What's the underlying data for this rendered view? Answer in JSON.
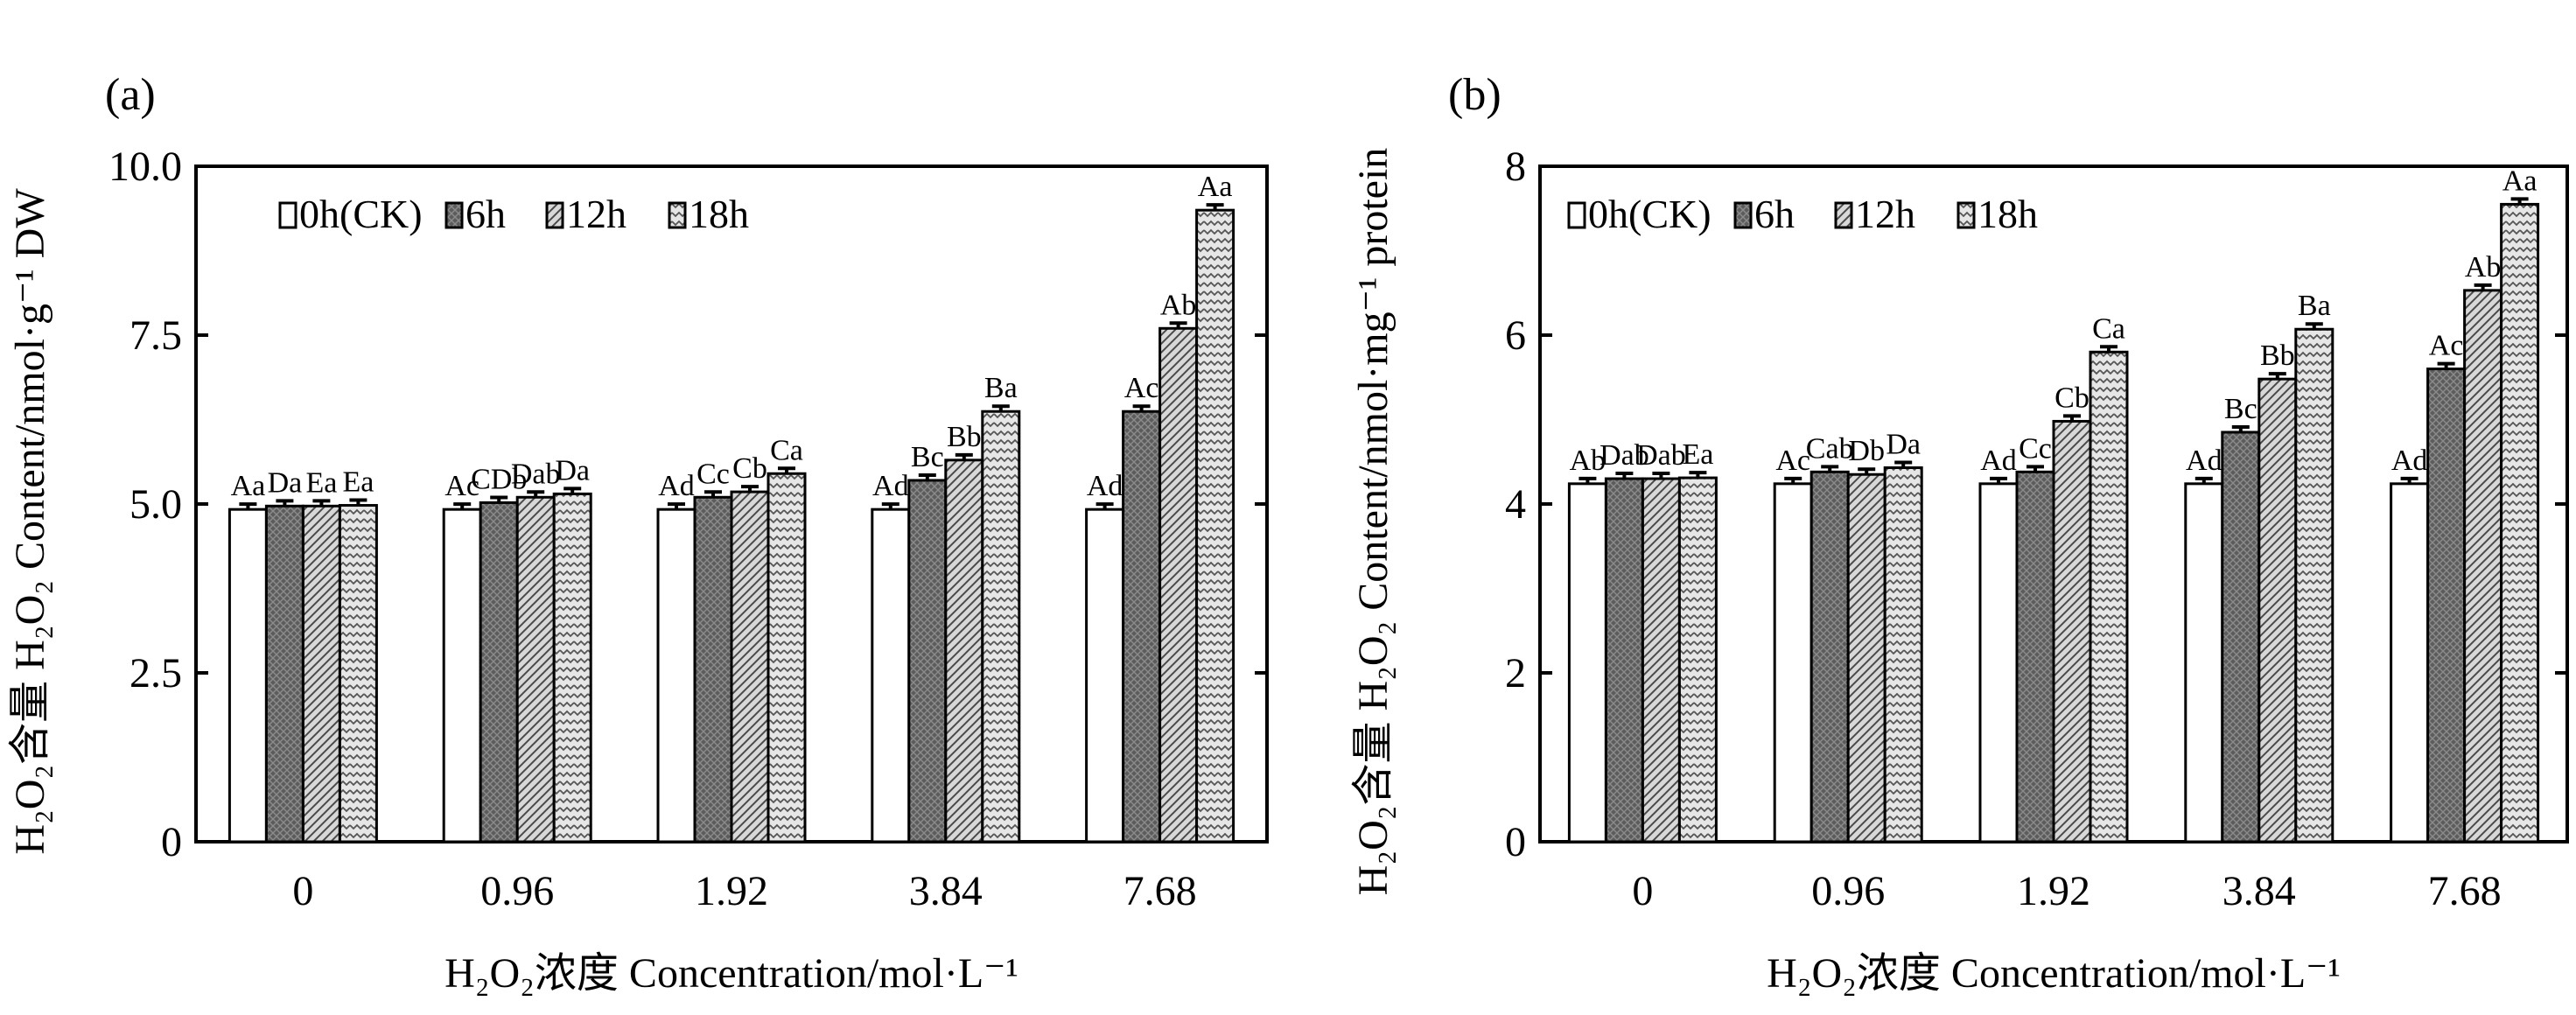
{
  "chart_data": [
    {
      "panel_label": "(a)",
      "type": "bar",
      "categories": [
        "0",
        "0.96",
        "1.92",
        "3.84",
        "7.68"
      ],
      "ylim": [
        0,
        10
      ],
      "yticks": [
        "0",
        "2.5",
        "5.0",
        "7.5",
        "10.0"
      ],
      "ytick_values": [
        0,
        2.5,
        5,
        7.5,
        10
      ],
      "ylabel_cn": "H₂O₂含量",
      "ylabel_en": "H₂O₂ Content/nmol·g⁻¹ DW",
      "xlabel_cn": "H₂O₂浓度",
      "xlabel_en": "Concentration/mol·L⁻¹",
      "legend_position": "top-left",
      "series": [
        {
          "name": "0h(CK)",
          "values": [
            4.92,
            4.92,
            4.92,
            4.92,
            4.92
          ],
          "labels": [
            "Aa",
            "Ac",
            "Ad",
            "Ad",
            "Ad"
          ]
        },
        {
          "name": "6h",
          "values": [
            4.97,
            5.02,
            5.1,
            5.35,
            6.37
          ],
          "labels": [
            "Da",
            "CDb",
            "Cc",
            "Bc",
            "Ac"
          ]
        },
        {
          "name": "12h",
          "values": [
            4.97,
            5.1,
            5.18,
            5.65,
            7.6
          ],
          "labels": [
            "Ea",
            "Dab",
            "Cb",
            "Bb",
            "Ab"
          ]
        },
        {
          "name": "18h",
          "values": [
            4.98,
            5.15,
            5.45,
            6.37,
            9.35
          ],
          "labels": [
            "Ea",
            "Da",
            "Ca",
            "Ba",
            "Aa"
          ]
        }
      ]
    },
    {
      "panel_label": "(b)",
      "type": "bar",
      "categories": [
        "0",
        "0.96",
        "1.92",
        "3.84",
        "7.68"
      ],
      "ylim": [
        0,
        8
      ],
      "yticks": [
        "0",
        "2",
        "4",
        "6",
        "8"
      ],
      "ytick_values": [
        0,
        2,
        4,
        6,
        8
      ],
      "ylabel_cn": "H₂O₂含量",
      "ylabel_en": "H₂O₂ Content/nmol·mg⁻¹ protein",
      "xlabel_cn": "H₂O₂浓度",
      "xlabel_en": "Concentration/mol·L⁻¹",
      "legend_position": "top-left",
      "series": [
        {
          "name": "0h(CK)",
          "values": [
            4.24,
            4.24,
            4.24,
            4.24,
            4.24
          ],
          "labels": [
            "Ab",
            "Ac",
            "Ad",
            "Ad",
            "Ad"
          ]
        },
        {
          "name": "6h",
          "values": [
            4.3,
            4.38,
            4.38,
            4.85,
            5.6
          ],
          "labels": [
            "Dab",
            "Cab",
            "Cc",
            "Bc",
            "Ac"
          ]
        },
        {
          "name": "12h",
          "values": [
            4.3,
            4.35,
            4.98,
            5.48,
            6.53
          ],
          "labels": [
            "Dab",
            "Db",
            "Cb",
            "Bb",
            "Ab"
          ]
        },
        {
          "name": "18h",
          "values": [
            4.31,
            4.43,
            5.8,
            6.07,
            7.55
          ],
          "labels": [
            "Ea",
            "Da",
            "Ca",
            "Ba",
            "Aa"
          ]
        }
      ]
    }
  ]
}
